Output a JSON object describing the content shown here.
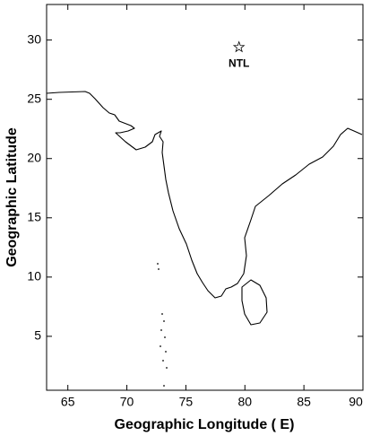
{
  "chart_data": {
    "type": "map",
    "x_label": "Geographic Longitude ( E)",
    "y_label": "Geographic Latitude",
    "xlim": [
      63.2,
      90
    ],
    "xticks": [
      65,
      70,
      75,
      80,
      85,
      90
    ],
    "ylim": [
      0.45,
      33
    ],
    "yticks": [
      5,
      10,
      15,
      20,
      25,
      30
    ],
    "points": [
      {
        "name": "NTL",
        "x": 79.5,
        "y": 29.4
      }
    ]
  }
}
